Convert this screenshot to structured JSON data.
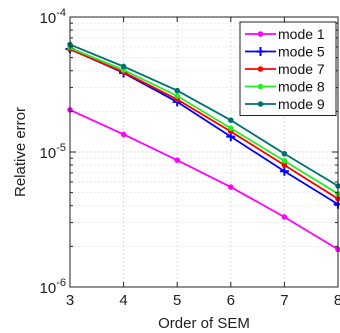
{
  "chart_data": {
    "type": "line",
    "xlabel": "Order of SEM",
    "ylabel": "Relative error",
    "x": [
      3,
      4,
      5,
      6,
      7,
      8
    ],
    "xlim": [
      3,
      8
    ],
    "ylim": [
      1e-06,
      0.0001
    ],
    "yscale": "log",
    "grid": true,
    "legend_position": "top-right",
    "x_tick_labels": [
      "3",
      "4",
      "5",
      "6",
      "7",
      "8"
    ],
    "y_tick_labels": [
      {
        "base": "10",
        "exp": "-4",
        "value": 0.0001
      },
      {
        "base": "10",
        "exp": "-5",
        "value": 1e-05
      },
      {
        "base": "10",
        "exp": "-6",
        "value": 1e-06
      }
    ],
    "series": [
      {
        "name": "mode 1",
        "color": "#ff00ff",
        "marker": "dot",
        "values": [
          2.05e-05,
          1.35e-05,
          8.7e-06,
          5.5e-06,
          3.3e-06,
          1.9e-06
        ]
      },
      {
        "name": "mode 5",
        "color": "#0000ff",
        "marker": "plus",
        "values": [
          5.8e-05,
          3.85e-05,
          2.35e-05,
          1.3e-05,
          7.2e-06,
          4.1e-06
        ]
      },
      {
        "name": "mode 7",
        "color": "#ff0000",
        "marker": "dot",
        "values": [
          5.75e-05,
          3.9e-05,
          2.45e-05,
          1.42e-05,
          8e-06,
          4.5e-06
        ]
      },
      {
        "name": "mode 8",
        "color": "#22ee22",
        "marker": "dot",
        "values": [
          5.9e-05,
          4.05e-05,
          2.6e-05,
          1.5e-05,
          8.6e-06,
          4.9e-06
        ]
      },
      {
        "name": "mode 9",
        "color": "#007070",
        "marker": "dot",
        "values": [
          6.25e-05,
          4.3e-05,
          2.85e-05,
          1.72e-05,
          9.7e-06,
          5.6e-06
        ]
      }
    ]
  }
}
